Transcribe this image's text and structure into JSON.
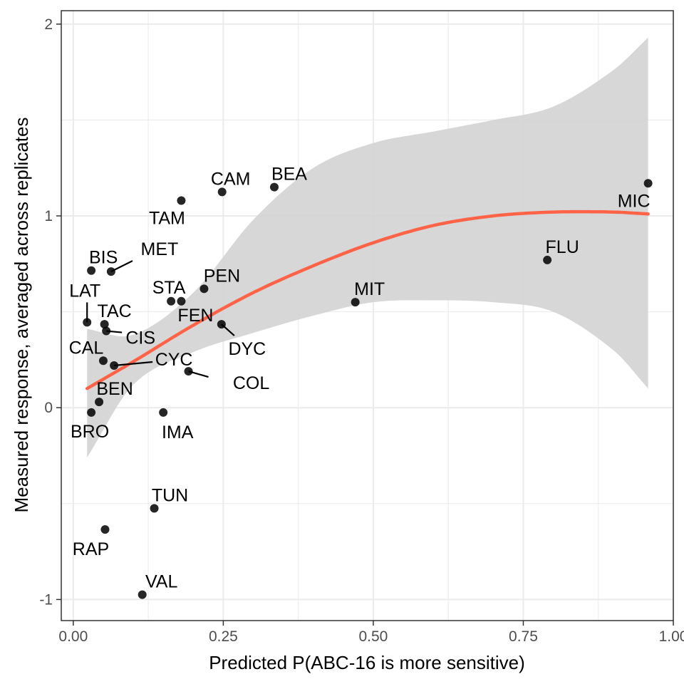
{
  "chart_data": {
    "type": "scatter",
    "title": "",
    "xlabel": "Predicted P(ABC-16 is more sensitive)",
    "ylabel": "Measured response, averaged across replicates",
    "xlim": [
      -0.02,
      1.0
    ],
    "ylim": [
      -1.11,
      2.07
    ],
    "x_ticks": [
      0.0,
      0.25,
      0.5,
      0.75,
      1.0
    ],
    "x_tick_labels": [
      "0.00",
      "0.25",
      "0.50",
      "0.75",
      "1.00"
    ],
    "y_ticks": [
      -1,
      0,
      1,
      2
    ],
    "y_tick_labels": [
      "-1",
      "0",
      "1",
      "2"
    ],
    "grid": true,
    "legend": "none",
    "colors": {
      "point": "#000000",
      "fit_line": "#ff6347",
      "ribbon": "#d3d3d3",
      "grid": "#ebebeb",
      "panel_border": "#333333"
    },
    "points": [
      {
        "label": "MIC",
        "x": 0.958,
        "y": 1.17
      },
      {
        "label": "BEA",
        "x": 0.335,
        "y": 1.15
      },
      {
        "label": "CAM",
        "x": 0.248,
        "y": 1.125
      },
      {
        "label": "TAM",
        "x": 0.18,
        "y": 1.08
      },
      {
        "label": "FLU",
        "x": 0.79,
        "y": 0.77
      },
      {
        "label": "BIS",
        "x": 0.03,
        "y": 0.715
      },
      {
        "label": "MET",
        "x": 0.063,
        "y": 0.71
      },
      {
        "label": "PEN",
        "x": 0.218,
        "y": 0.62
      },
      {
        "label": "MIT",
        "x": 0.47,
        "y": 0.55
      },
      {
        "label": "STA",
        "x": 0.163,
        "y": 0.555
      },
      {
        "label": "FEN",
        "x": 0.18,
        "y": 0.555
      },
      {
        "label": "LAT",
        "x": 0.023,
        "y": 0.445
      },
      {
        "label": "TAC",
        "x": 0.052,
        "y": 0.435
      },
      {
        "label": "DYC",
        "x": 0.247,
        "y": 0.435
      },
      {
        "label": "CIS",
        "x": 0.055,
        "y": 0.4
      },
      {
        "label": "CAL",
        "x": 0.05,
        "y": 0.245
      },
      {
        "label": "CYC",
        "x": 0.068,
        "y": 0.22
      },
      {
        "label": "COL",
        "x": 0.192,
        "y": 0.19
      },
      {
        "label": "BEN",
        "x": 0.043,
        "y": 0.03
      },
      {
        "label": "BRO",
        "x": 0.03,
        "y": -0.025
      },
      {
        "label": "IMA",
        "x": 0.15,
        "y": -0.025
      },
      {
        "label": "TUN",
        "x": 0.135,
        "y": -0.525
      },
      {
        "label": "RAP",
        "x": 0.053,
        "y": -0.635
      },
      {
        "label": "VAL",
        "x": 0.115,
        "y": -0.975
      }
    ],
    "fit_line": {
      "x": [
        0.023,
        0.1,
        0.2,
        0.3,
        0.4,
        0.5,
        0.6,
        0.7,
        0.8,
        0.9,
        0.958
      ],
      "y": [
        0.1,
        0.24,
        0.43,
        0.6,
        0.74,
        0.86,
        0.95,
        1.0,
        1.02,
        1.02,
        1.01
      ],
      "ymin": [
        -0.26,
        0.12,
        0.29,
        0.39,
        0.48,
        0.55,
        0.56,
        0.55,
        0.5,
        0.3,
        0.1
      ],
      "ymax": [
        0.41,
        0.38,
        0.6,
        0.98,
        1.25,
        1.38,
        1.44,
        1.5,
        1.57,
        1.76,
        1.93
      ]
    }
  }
}
